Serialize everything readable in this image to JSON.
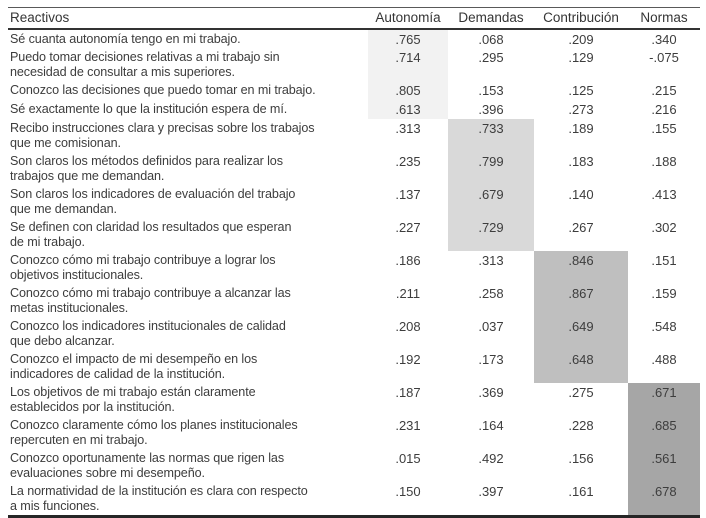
{
  "chart_data": {
    "type": "table",
    "columns": [
      "Reactivos",
      "Autonomía",
      "Demandas",
      "Contribución",
      "Normas"
    ],
    "rows": [
      {
        "reactivo": "Sé cuanta autonomía tengo en mi trabajo.",
        "values": [
          ".765",
          ".068",
          ".209",
          ".340"
        ],
        "highlight_col": 0,
        "lines": 1
      },
      {
        "reactivo": "Puedo tomar decisiones relativas a mi trabajo sin\nnecesidad de consultar a mis superiores.",
        "values": [
          ".714",
          ".295",
          ".129",
          "-.075"
        ],
        "highlight_col": 0,
        "lines": 2
      },
      {
        "reactivo": "Conozco las decisiones que puedo tomar en mi trabajo.",
        "values": [
          ".805",
          ".153",
          ".125",
          ".215"
        ],
        "highlight_col": 0,
        "lines": 1
      },
      {
        "reactivo": "Sé exactamente lo que la institución espera de mí.",
        "values": [
          ".613",
          ".396",
          ".273",
          ".216"
        ],
        "highlight_col": 0,
        "lines": 1
      },
      {
        "reactivo": "Recibo instrucciones clara y precisas sobre los trabajos\nque me comisionan.",
        "values": [
          ".313",
          ".733",
          ".189",
          ".155"
        ],
        "highlight_col": 1,
        "lines": 2
      },
      {
        "reactivo": "Son claros los métodos definidos para realizar los\ntrabajos que me demandan.",
        "values": [
          ".235",
          ".799",
          ".183",
          ".188"
        ],
        "highlight_col": 1,
        "lines": 2
      },
      {
        "reactivo": "Son claros los indicadores de evaluación del trabajo\nque me demandan.",
        "values": [
          ".137",
          ".679",
          ".140",
          ".413"
        ],
        "highlight_col": 1,
        "lines": 2
      },
      {
        "reactivo": "Se definen con claridad los resultados que esperan\nde mi trabajo.",
        "values": [
          ".227",
          ".729",
          ".267",
          ".302"
        ],
        "highlight_col": 1,
        "lines": 2
      },
      {
        "reactivo": "Conozco cómo mi trabajo contribuye a lograr los\nobjetivos institucionales.",
        "values": [
          ".186",
          ".313",
          ".846",
          ".151"
        ],
        "highlight_col": 2,
        "lines": 2
      },
      {
        "reactivo": "Conozco cómo mi trabajo contribuye a alcanzar las\nmetas institucionales.",
        "values": [
          ".211",
          ".258",
          ".867",
          ".159"
        ],
        "highlight_col": 2,
        "lines": 2
      },
      {
        "reactivo": "Conozco los indicadores institucionales de calidad\nque debo alcanzar.",
        "values": [
          ".208",
          ".037",
          ".649",
          ".548"
        ],
        "highlight_col": 2,
        "lines": 2
      },
      {
        "reactivo": "Conozco el impacto de mi desempeño en los\nindicadores de calidad de la institución.",
        "values": [
          ".192",
          ".173",
          ".648",
          ".488"
        ],
        "highlight_col": 2,
        "lines": 2
      },
      {
        "reactivo": "Los objetivos de mi trabajo están claramente\nestablecidos por la institución.",
        "values": [
          ".187",
          ".369",
          ".275",
          ".671"
        ],
        "highlight_col": 3,
        "lines": 2
      },
      {
        "reactivo": "Conozco claramente cómo los planes institucionales\nrepercuten en mi trabajo.",
        "values": [
          ".231",
          ".164",
          ".228",
          ".685"
        ],
        "highlight_col": 3,
        "lines": 2
      },
      {
        "reactivo": "Conozco oportunamente las normas que rigen las\nevaluaciones sobre mi desempeño.",
        "values": [
          ".015",
          ".492",
          ".156",
          ".561"
        ],
        "highlight_col": 3,
        "lines": 2
      },
      {
        "reactivo": "La normatividad de la institución es clara con respecto\na mis funciones.",
        "values": [
          ".150",
          ".397",
          ".161",
          ".678"
        ],
        "highlight_col": 3,
        "lines": 2
      }
    ]
  },
  "colors": {
    "highlight_bands": [
      "#f2f2f2",
      "#d9d9d9",
      "#bfbfbf",
      "#a6a6a6"
    ],
    "text": "#3d3d3d"
  }
}
